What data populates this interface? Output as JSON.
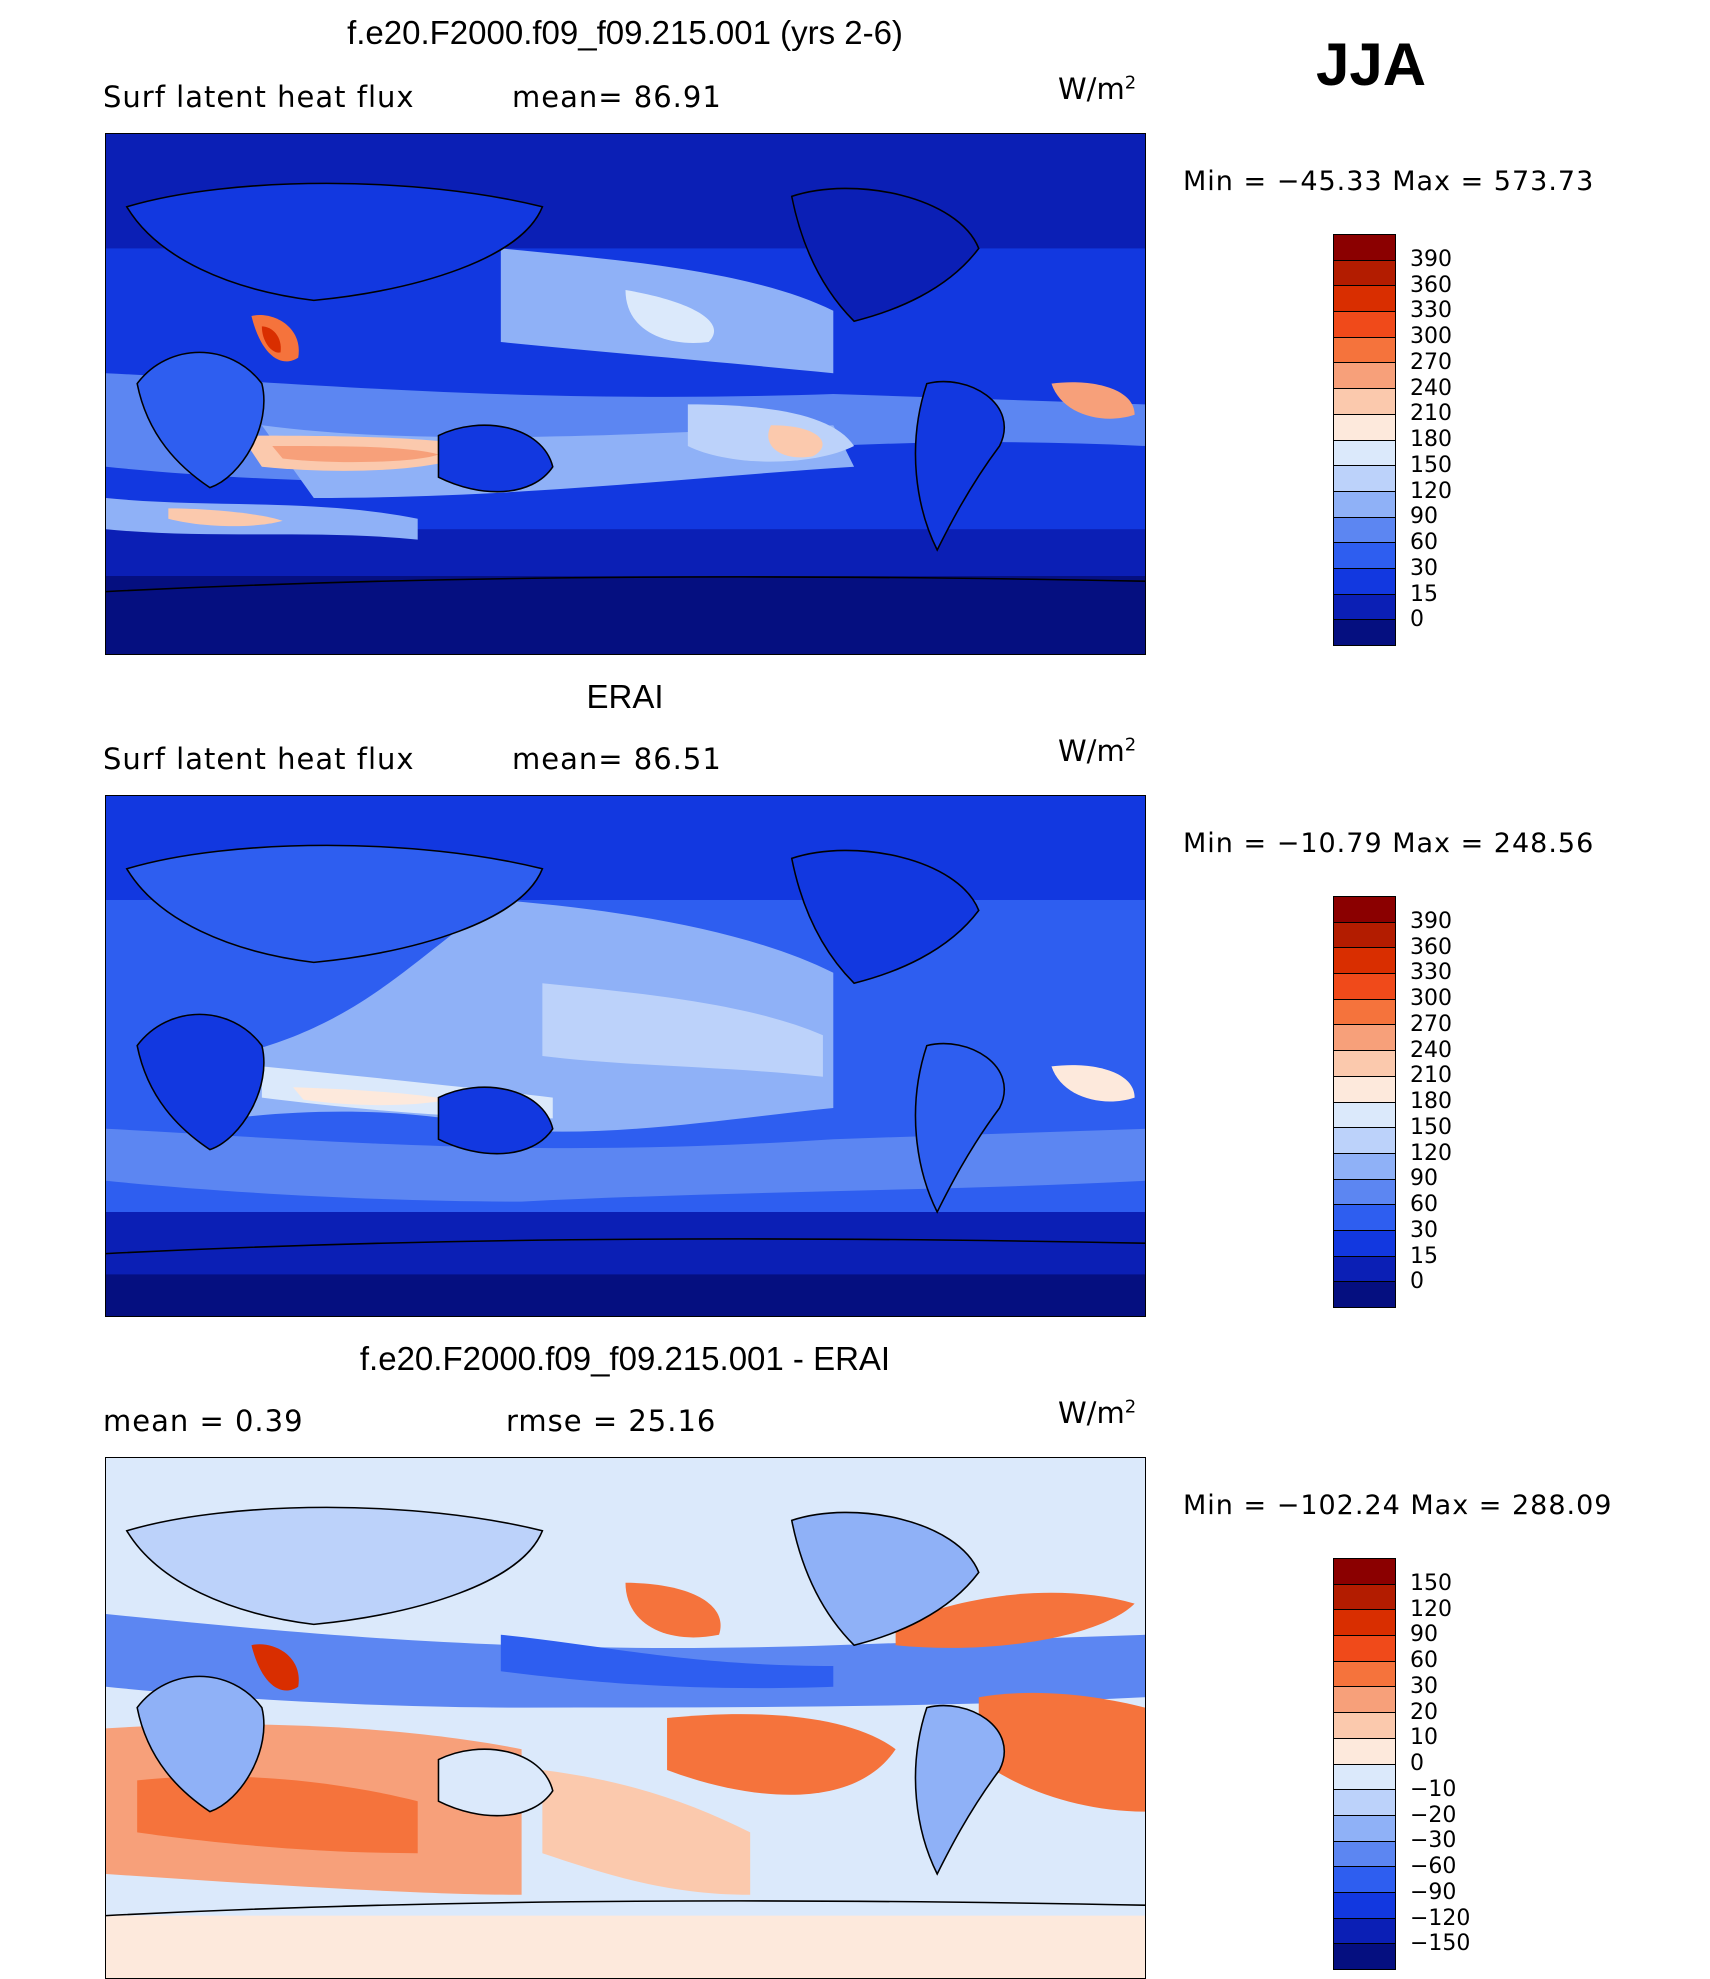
{
  "season": "JJA",
  "panels": [
    {
      "title": "f.e20.F2000.f09_f09.215.001 (yrs 2-6)",
      "left_label": "Surf  latent  heat  flux",
      "mid_label": "mean=   86.91",
      "units": "W/m",
      "units_sup": "2",
      "minmax": "Min  =  −45.33  Max  =  573.73",
      "colorbar_labels": [
        "390",
        "360",
        "330",
        "300",
        "270",
        "240",
        "210",
        "180",
        "150",
        "120",
        "90",
        "60",
        "30",
        "15",
        "0"
      ],
      "colorbar_colors": [
        "#8b0000",
        "#b31c00",
        "#d92e00",
        "#f04a1a",
        "#f5733c",
        "#f7a07a",
        "#fbc9ad",
        "#fde9dc",
        "#dbe9fb",
        "#bcd2fa",
        "#8fb1f7",
        "#5c86f2",
        "#2e5ef0",
        "#1238e0",
        "#0b1fb5",
        "#050f80"
      ]
    },
    {
      "title": "ERAI",
      "left_label": "Surf  latent  heat  flux",
      "mid_label": "mean=   86.51",
      "units": "W/m",
      "units_sup": "2",
      "minmax": "Min  =  −10.79  Max  =  248.56",
      "colorbar_labels": [
        "390",
        "360",
        "330",
        "300",
        "270",
        "240",
        "210",
        "180",
        "150",
        "120",
        "90",
        "60",
        "30",
        "15",
        "0"
      ],
      "colorbar_colors": [
        "#8b0000",
        "#b31c00",
        "#d92e00",
        "#f04a1a",
        "#f5733c",
        "#f7a07a",
        "#fbc9ad",
        "#fde9dc",
        "#dbe9fb",
        "#bcd2fa",
        "#8fb1f7",
        "#5c86f2",
        "#2e5ef0",
        "#1238e0",
        "#0b1fb5",
        "#050f80"
      ]
    },
    {
      "title": "f.e20.F2000.f09_f09.215.001 - ERAI",
      "left_label": "mean  =     0.39",
      "mid_label": "rmse  =    25.16",
      "units": "W/m",
      "units_sup": "2",
      "minmax": "Min  =  −102.24  Max  =  288.09",
      "colorbar_labels": [
        "150",
        "120",
        "90",
        "60",
        "30",
        "20",
        "10",
        "0",
        "−10",
        "−20",
        "−30",
        "−60",
        "−90",
        "−120",
        "−150"
      ],
      "colorbar_colors": [
        "#8b0000",
        "#b31c00",
        "#d92e00",
        "#f04a1a",
        "#f5733c",
        "#f7a07a",
        "#fbc9ad",
        "#fde9dc",
        "#dbe9fb",
        "#bcd2fa",
        "#8fb1f7",
        "#5c86f2",
        "#2e5ef0",
        "#1238e0",
        "#0b1fb5",
        "#050f80"
      ]
    }
  ]
}
